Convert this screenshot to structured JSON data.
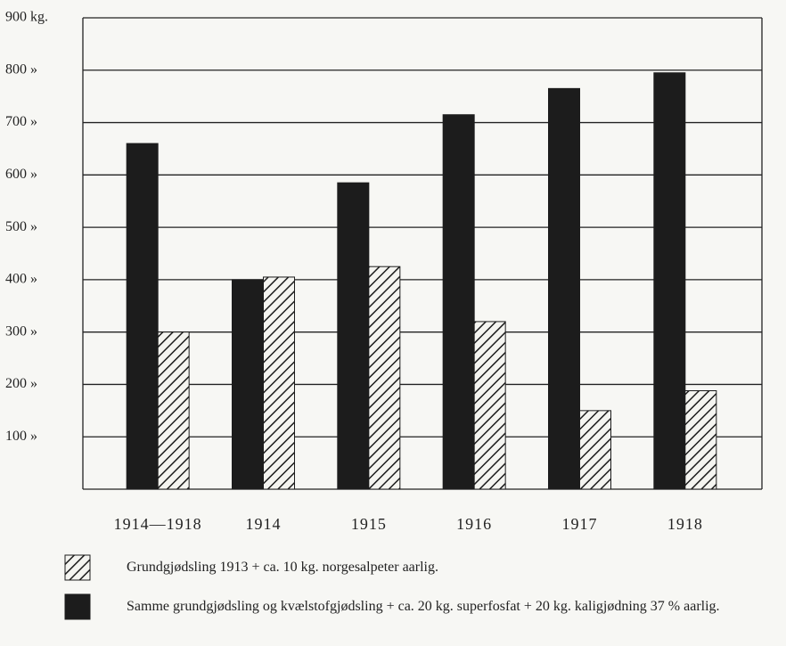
{
  "chart_data": {
    "type": "bar",
    "categories": [
      "1914—1918",
      "1914",
      "1915",
      "1916",
      "1917",
      "1918"
    ],
    "series": [
      {
        "name": "Samme grundgjødsling og kvælstofgjødsling + ca. 20 kg. superfosfat + 20 kg. kaligjødning 37 % aarlig.",
        "color": "#1c1c1c",
        "hatch": false,
        "values": [
          660,
          400,
          585,
          715,
          765,
          795
        ]
      },
      {
        "name": "Grundgjødsling 1913 + ca. 10 kg. norgesalpeter aarlig.",
        "color": "#1c1c1c",
        "hatch": true,
        "values": [
          300,
          405,
          425,
          320,
          150,
          188
        ]
      }
    ],
    "ylim": [
      0,
      900
    ],
    "yticks": [
      {
        "value": 100,
        "label": "100 »"
      },
      {
        "value": 200,
        "label": "200 »"
      },
      {
        "value": 300,
        "label": "300 »"
      },
      {
        "value": 400,
        "label": "400 »"
      },
      {
        "value": 500,
        "label": "500 »"
      },
      {
        "value": 600,
        "label": "600 »"
      },
      {
        "value": 700,
        "label": "700 »"
      },
      {
        "value": 800,
        "label": "800 »"
      },
      {
        "value": 900,
        "label": "900 kg."
      }
    ],
    "grid": true
  }
}
